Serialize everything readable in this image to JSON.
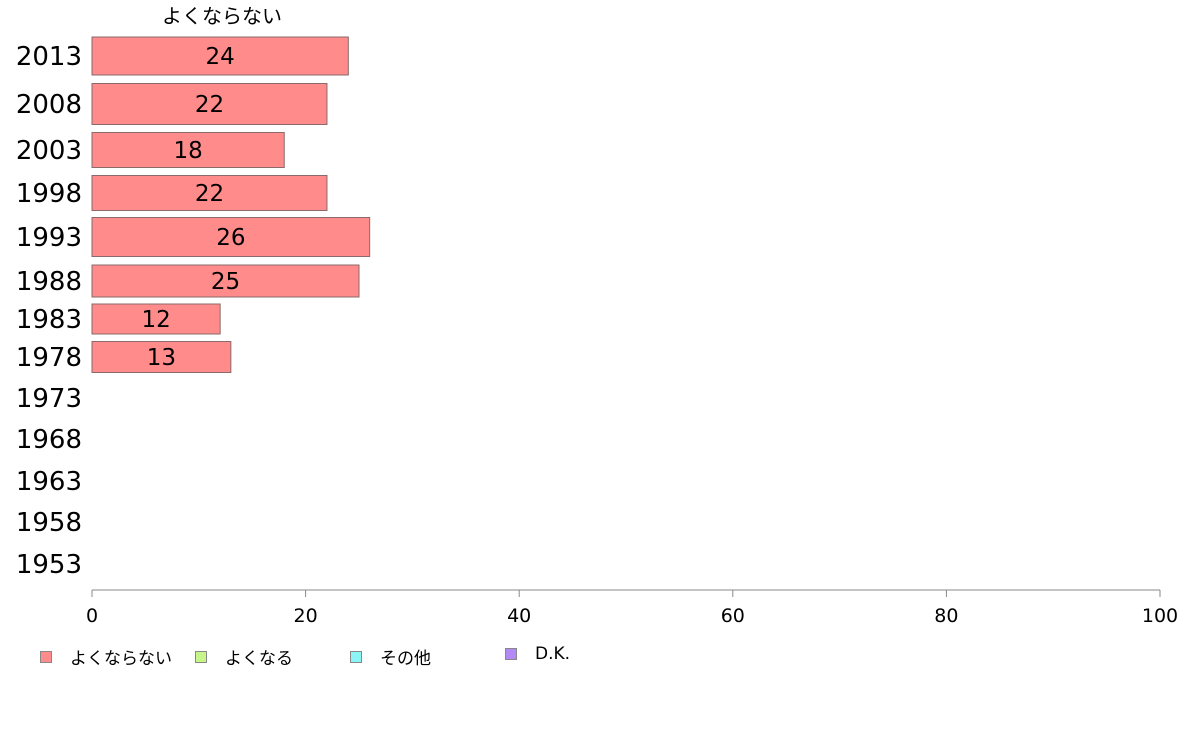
{
  "chart_data": {
    "type": "bar",
    "orientation": "horizontal",
    "title": "よくならない",
    "categories": [
      "2013",
      "2008",
      "2003",
      "1998",
      "1993",
      "1988",
      "1983",
      "1978",
      "1973",
      "1968",
      "1963",
      "1958",
      "1953"
    ],
    "series": [
      {
        "name": "よくならない",
        "color": "#ff8b8b",
        "values": [
          24,
          22,
          18,
          22,
          26,
          25,
          12,
          13,
          null,
          null,
          null,
          null,
          null
        ]
      }
    ],
    "xlim": [
      0,
      100
    ],
    "xticks": [
      0,
      20,
      40,
      60,
      80,
      100
    ],
    "grid": false,
    "legend_position": "bottom-left",
    "legend": [
      {
        "label": "よくならない",
        "color": "#ff8b8b"
      },
      {
        "label": "よくなる",
        "color": "#c8f58a"
      },
      {
        "label": "その他",
        "color": "#8bf5f5"
      },
      {
        "label": "D.K.",
        "color": "#b38af5"
      }
    ]
  }
}
